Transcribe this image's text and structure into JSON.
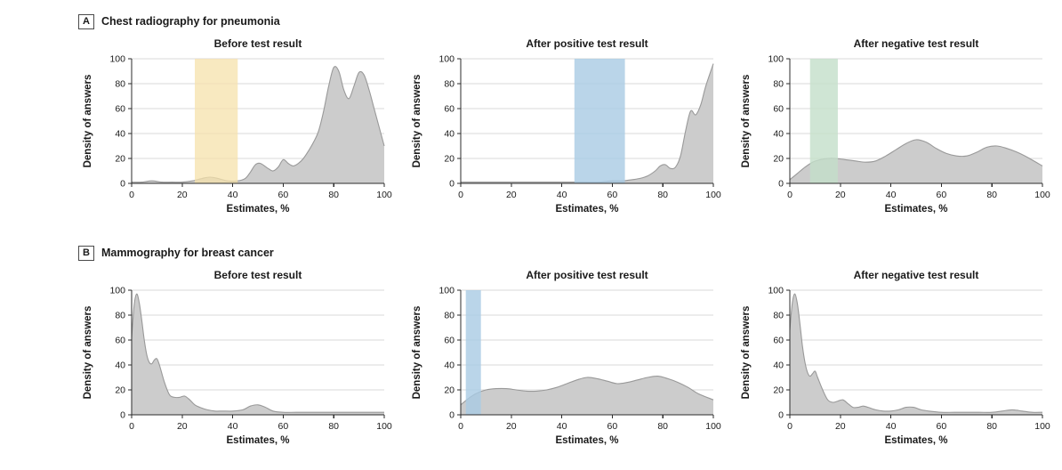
{
  "figure": {
    "background": "#ffffff",
    "curve_fill": "#cccccc",
    "curve_stroke": "#999999",
    "grid_color": "#d9d9d9",
    "axis_color": "#2b2b2b",
    "text_color": "#1a1a1a"
  },
  "panels": [
    {
      "label": "A",
      "title": "Chest radiography for pneumonia"
    },
    {
      "label": "B",
      "title": "Mammography for breast cancer"
    }
  ],
  "chart_data": [
    {
      "type": "area",
      "panel": "A",
      "title": "Before test result",
      "xlabel": "Estimates, %",
      "ylabel": "Density of answers",
      "xlim": [
        0,
        100
      ],
      "ylim": [
        0,
        100
      ],
      "xticks": [
        0,
        20,
        40,
        60,
        80,
        100
      ],
      "yticks": [
        0,
        20,
        40,
        60,
        80,
        100
      ],
      "grid": "horizontal",
      "legend": "none",
      "band": {
        "from": 25,
        "to": 42,
        "color": "#f6e2ab",
        "opacity": 0.75
      },
      "x": [
        0,
        4,
        8,
        12,
        16,
        20,
        24,
        28,
        31,
        34,
        38,
        42,
        45,
        47,
        49,
        51,
        54,
        56,
        58,
        60,
        62,
        64,
        66,
        68,
        70,
        72,
        74,
        76,
        78,
        80,
        82,
        84,
        86,
        88,
        90,
        92,
        94,
        96,
        98,
        100
      ],
      "y": [
        1,
        1,
        2,
        1,
        1,
        1,
        2,
        4,
        5,
        4,
        2,
        2,
        4,
        9,
        15,
        16,
        12,
        10,
        13,
        19,
        16,
        14,
        16,
        20,
        26,
        33,
        42,
        58,
        78,
        93,
        90,
        75,
        68,
        78,
        89,
        87,
        75,
        60,
        45,
        30
      ]
    },
    {
      "type": "area",
      "panel": "A",
      "title": "After positive test result",
      "xlabel": "Estimates, %",
      "ylabel": "Density of answers",
      "xlim": [
        0,
        100
      ],
      "ylim": [
        0,
        100
      ],
      "xticks": [
        0,
        20,
        40,
        60,
        80,
        100
      ],
      "yticks": [
        0,
        20,
        40,
        60,
        80,
        100
      ],
      "grid": "horizontal",
      "legend": "none",
      "band": {
        "from": 45,
        "to": 65,
        "color": "#a9cbe4",
        "opacity": 0.8
      },
      "x": [
        0,
        10,
        20,
        30,
        40,
        48,
        55,
        60,
        64,
        68,
        71,
        74,
        77,
        79,
        81,
        83,
        85,
        87,
        89,
        91,
        93,
        95,
        97,
        100
      ],
      "y": [
        1,
        1,
        1,
        1,
        1,
        1,
        1,
        2,
        2,
        3,
        4,
        6,
        10,
        14,
        15,
        12,
        13,
        22,
        42,
        58,
        55,
        63,
        78,
        96
      ]
    },
    {
      "type": "area",
      "panel": "A",
      "title": "After negative test result",
      "xlabel": "Estimates, %",
      "ylabel": "Density of answers",
      "xlim": [
        0,
        100
      ],
      "ylim": [
        0,
        100
      ],
      "xticks": [
        0,
        20,
        40,
        60,
        80,
        100
      ],
      "yticks": [
        0,
        20,
        40,
        60,
        80,
        100
      ],
      "grid": "horizontal",
      "legend": "none",
      "band": {
        "from": 8,
        "to": 19,
        "color": "#c3dec9",
        "opacity": 0.8
      },
      "x": [
        0,
        3,
        6,
        9,
        12,
        15,
        18,
        22,
        26,
        30,
        34,
        38,
        42,
        46,
        50,
        54,
        58,
        62,
        66,
        70,
        74,
        78,
        82,
        86,
        90,
        94,
        100
      ],
      "y": [
        3,
        8,
        13,
        17,
        19,
        20,
        20,
        19,
        18,
        17,
        18,
        22,
        27,
        32,
        35,
        33,
        28,
        24,
        22,
        22,
        25,
        29,
        30,
        28,
        25,
        21,
        14
      ]
    },
    {
      "type": "area",
      "panel": "B",
      "title": "Before test result",
      "xlabel": "Estimates, %",
      "ylabel": "Density of answers",
      "xlim": [
        0,
        100
      ],
      "ylim": [
        0,
        100
      ],
      "xticks": [
        0,
        20,
        40,
        60,
        80,
        100
      ],
      "yticks": [
        0,
        20,
        40,
        60,
        80,
        100
      ],
      "grid": "horizontal",
      "legend": "none",
      "band": null,
      "x": [
        0,
        1,
        2,
        3,
        4,
        5,
        6,
        7,
        8,
        9,
        10,
        11,
        13,
        15,
        17,
        19,
        21,
        23,
        25,
        27,
        30,
        33,
        36,
        40,
        44,
        47,
        50,
        53,
        56,
        60,
        65,
        70,
        75,
        80,
        85,
        90,
        95,
        100
      ],
      "y": [
        62,
        88,
        97,
        90,
        76,
        60,
        48,
        42,
        41,
        44,
        45,
        40,
        26,
        16,
        14,
        14,
        15,
        12,
        8,
        6,
        4,
        3,
        3,
        3,
        4,
        7,
        8,
        6,
        3,
        2,
        2,
        2,
        2,
        2,
        2,
        2,
        2,
        2
      ]
    },
    {
      "type": "area",
      "panel": "B",
      "title": "After positive test result",
      "xlabel": "Estimates, %",
      "ylabel": "Density of answers",
      "xlim": [
        0,
        100
      ],
      "ylim": [
        0,
        100
      ],
      "xticks": [
        0,
        20,
        40,
        60,
        80,
        100
      ],
      "yticks": [
        0,
        20,
        40,
        60,
        80,
        100
      ],
      "grid": "horizontal",
      "legend": "none",
      "band": {
        "from": 2,
        "to": 8,
        "color": "#a9cbe4",
        "opacity": 0.8
      },
      "x": [
        0,
        3,
        6,
        10,
        14,
        18,
        22,
        26,
        30,
        34,
        38,
        42,
        46,
        50,
        54,
        58,
        62,
        66,
        70,
        74,
        78,
        82,
        86,
        90,
        94,
        100
      ],
      "y": [
        8,
        13,
        17,
        20,
        21,
        21,
        20,
        19,
        19,
        20,
        22,
        25,
        28,
        30,
        29,
        27,
        25,
        26,
        28,
        30,
        31,
        29,
        26,
        22,
        17,
        12
      ]
    },
    {
      "type": "area",
      "panel": "B",
      "title": "After negative test result",
      "xlabel": "Estimates, %",
      "ylabel": "Density of answers",
      "xlim": [
        0,
        100
      ],
      "ylim": [
        0,
        100
      ],
      "xticks": [
        0,
        20,
        40,
        60,
        80,
        100
      ],
      "yticks": [
        0,
        20,
        40,
        60,
        80,
        100
      ],
      "grid": "horizontal",
      "legend": "none",
      "band": null,
      "x": [
        0,
        1,
        2,
        3,
        4,
        5,
        6,
        7,
        8,
        9,
        10,
        11,
        13,
        15,
        17,
        19,
        21,
        23,
        25,
        27,
        29,
        31,
        34,
        37,
        40,
        43,
        46,
        49,
        52,
        55,
        60,
        65,
        70,
        75,
        80,
        84,
        88,
        92,
        96,
        100
      ],
      "y": [
        68,
        90,
        97,
        89,
        73,
        55,
        42,
        34,
        31,
        33,
        35,
        30,
        20,
        12,
        10,
        11,
        12,
        9,
        6,
        6,
        7,
        6,
        4,
        3,
        3,
        4,
        6,
        6,
        4,
        3,
        2,
        2,
        2,
        2,
        2,
        3,
        4,
        3,
        2,
        2
      ]
    }
  ]
}
